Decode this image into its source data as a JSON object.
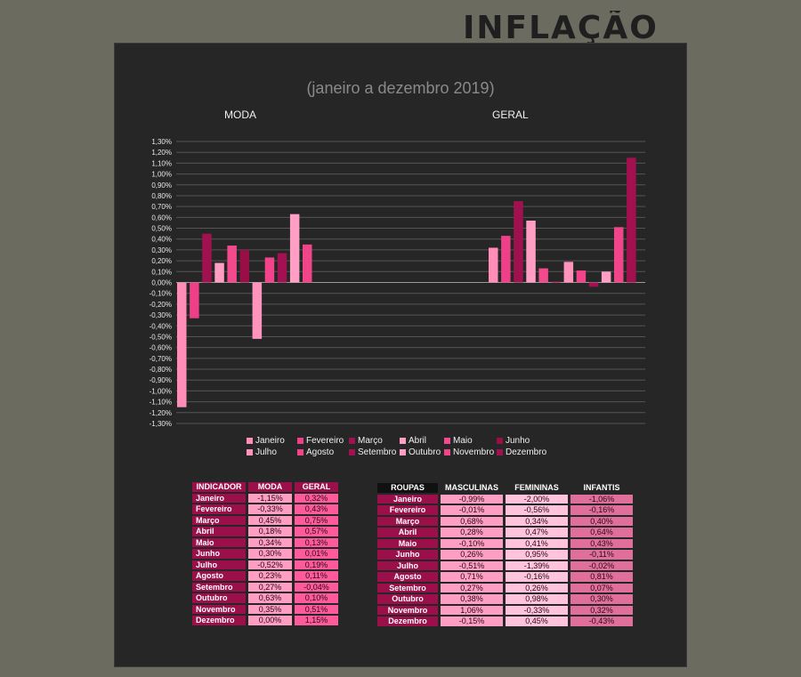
{
  "banner": "INFLAÇÃO",
  "subtitle": "(janeiro a dezembro 2019)",
  "chart_data": {
    "type": "bar",
    "groups": [
      "MODA",
      "GERAL"
    ],
    "categories": [
      "Janeiro",
      "Fevereiro",
      "Março",
      "Abril",
      "Maio",
      "Junho",
      "Julho",
      "Agosto",
      "Setembro",
      "Outubro",
      "Novembro",
      "Dezembro"
    ],
    "series": [
      {
        "name": "MODA",
        "values": [
          -1.15,
          -0.33,
          0.45,
          0.18,
          0.34,
          0.3,
          -0.52,
          0.23,
          0.27,
          0.63,
          0.35,
          0.0
        ]
      },
      {
        "name": "GERAL",
        "values": [
          0.32,
          0.43,
          0.75,
          0.57,
          0.13,
          0.01,
          0.19,
          0.11,
          -0.04,
          0.1,
          0.51,
          1.15
        ]
      }
    ],
    "ylim": [
      -1.3,
      1.3
    ],
    "ytick_step": 0.1,
    "grid": true,
    "legend_position": "bottom",
    "colors": [
      "#ff8db8",
      "#ef3f86",
      "#a0124f",
      "#ff9dc2",
      "#f24a8d",
      "#9a0e48",
      "#ff93bc",
      "#f3438a",
      "#a31152",
      "#ff9fc5",
      "#f04589",
      "#a2104f"
    ]
  },
  "table_moda": {
    "headers": [
      "INDICADOR",
      "MODA",
      "GERAL"
    ],
    "header_colors": [
      "#9b0f4b",
      "#9b0f4b",
      "#9b0f4b"
    ],
    "rows": [
      [
        "Janeiro",
        "-1,15%",
        "0,32%"
      ],
      [
        "Fevereiro",
        "-0,33%",
        "0,43%"
      ],
      [
        "Março",
        "0,45%",
        "0,75%"
      ],
      [
        "Abril",
        "0,18%",
        "0,57%"
      ],
      [
        "Maio",
        "0,34%",
        "0,13%"
      ],
      [
        "Junho",
        "0,30%",
        "0,01%"
      ],
      [
        "Julho",
        "-0,52%",
        "0,19%"
      ],
      [
        "Agosto",
        "0,23%",
        "0,11%"
      ],
      [
        "Setembro",
        "0,27%",
        "-0,04%"
      ],
      [
        "Outubro",
        "0,63%",
        "0,10%"
      ],
      [
        "Novembro",
        "0,35%",
        "0,51%"
      ],
      [
        "Dezembro",
        "0,00%",
        "1,15%"
      ]
    ],
    "cell_colors": [
      "#ff9ec3",
      "#ff5a9b"
    ]
  },
  "table_roupas": {
    "headers": [
      "ROUPAS",
      "MASCULINAS",
      "FEMININAS",
      "INFANTIS"
    ],
    "header_colors": [
      "#111111",
      "#262626",
      "#262626",
      "#262626"
    ],
    "rows": [
      [
        "Janeiro",
        "-0,99%",
        "-2,00%",
        "-1,06%"
      ],
      [
        "Fevereiro",
        "-0,01%",
        "-0,56%",
        "-0,16%"
      ],
      [
        "Março",
        "0,68%",
        "0,34%",
        "0,40%"
      ],
      [
        "Abril",
        "0,28%",
        "0,47%",
        "0,64%"
      ],
      [
        "Maio",
        "-0,10%",
        "0,41%",
        "0,43%"
      ],
      [
        "Junho",
        "0,26%",
        "0,95%",
        "-0,11%"
      ],
      [
        "Julho",
        "-0,51%",
        "-1,39%",
        "-0,02%"
      ],
      [
        "Agosto",
        "0,71%",
        "-0,16%",
        "0,81%"
      ],
      [
        "Setembro",
        "0,27%",
        "0,26%",
        "0,07%"
      ],
      [
        "Outubro",
        "0,38%",
        "0,98%",
        "0,30%"
      ],
      [
        "Novembro",
        "1,06%",
        "-0,33%",
        "0,32%"
      ],
      [
        "Dezembro",
        "-0,15%",
        "0,45%",
        "-0,43%"
      ]
    ],
    "cell_colors": [
      "#ff9ec3",
      "#ffc4dc",
      "#e0709b"
    ]
  }
}
